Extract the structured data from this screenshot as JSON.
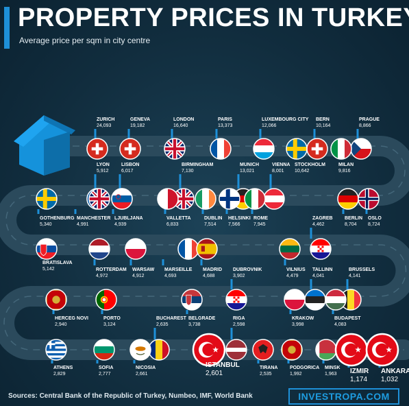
{
  "header": {
    "title": "PROPERTY PRICES IN TURKEY",
    "subtitle": "Average price per sqm in city centre"
  },
  "footer": {
    "sources": "Sources: Central Bank of the Republic of Turkey, Numbeo, IMF, World Bank",
    "brand": "INVESTROPA.COM"
  },
  "colors": {
    "background": "#112d3e",
    "road": "#2b4a5c",
    "road_dash": "#44677a",
    "accent": "#1e90d8",
    "turkey_red": "#e30a17",
    "label_tick": "#1e90d8"
  },
  "chart_data": {
    "type": "bar",
    "ylabel": "Average price per sqm in city centre",
    "categories": [
      "ZURICH",
      "GENEVA",
      "LONDON",
      "PARIS",
      "LUXEMBOURG CITY",
      "BERN",
      "PRAGUE",
      "LYON",
      "LISBON",
      "BIRMINGHAM",
      "MUNICH",
      "VIENNA",
      "STOCKHOLM",
      "MILAN",
      "GOTHENBURG",
      "MANCHESTER",
      "LJUBLJANA",
      "VALLETTA",
      "DUBLIN",
      "HELSINKI",
      "ROME",
      "ZAGREB",
      "BERLIN",
      "OSLO",
      "BRATISLAVA",
      "ROTTERDAM",
      "WARSAW",
      "MARSEILLE",
      "MADRID",
      "DUBROVNIK",
      "VILNIUS",
      "TALLINN",
      "BRUSSELS",
      "HERCEG NOVI",
      "PORTO",
      "BUCHAREST",
      "BELGRADE",
      "RIGA",
      "KRAKOW",
      "BUDAPEST",
      "ATHENS",
      "SOFIA",
      "NICOSIA",
      "ISTANBUL",
      "TIRANA",
      "PODGORICA",
      "MINSK",
      "IZMIR",
      "ANKARA"
    ],
    "values": [
      24093,
      19182,
      16640,
      13373,
      12066,
      10164,
      8866,
      5912,
      6017,
      7130,
      13021,
      8001,
      10642,
      9816,
      5340,
      4991,
      4939,
      6833,
      7514,
      7566,
      7945,
      4462,
      8704,
      8724,
      5142,
      4972,
      4912,
      4693,
      4688,
      3902,
      4479,
      4041,
      4141,
      2940,
      3124,
      2635,
      3738,
      2598,
      3998,
      4083,
      2829,
      2777,
      2661,
      2601,
      2535,
      1992,
      1963,
      1174,
      1032
    ],
    "points": [
      {
        "name": "ZURICH",
        "value": "24,093",
        "flag": "swiss"
      },
      {
        "name": "GENEVA",
        "value": "19,182",
        "flag": "swiss"
      },
      {
        "name": "LONDON",
        "value": "16,640",
        "flag": "uk"
      },
      {
        "name": "PARIS",
        "value": "13,373",
        "flag": "france"
      },
      {
        "name": "LUXEMBOURG CITY",
        "value": "12,066",
        "flag": "luxembourg"
      },
      {
        "name": "BERN",
        "value": "10,164",
        "flag": "swiss"
      },
      {
        "name": "PRAGUE",
        "value": "8,866",
        "flag": "czech"
      },
      {
        "name": "LYON",
        "value": "5,912",
        "flag": "france"
      },
      {
        "name": "LISBON",
        "value": "6,017",
        "flag": "portugal"
      },
      {
        "name": "BIRMINGHAM",
        "value": "7,130",
        "flag": "uk"
      },
      {
        "name": "MUNICH",
        "value": "13,021",
        "flag": "germany"
      },
      {
        "name": "VIENNA",
        "value": "8,001",
        "flag": "austria"
      },
      {
        "name": "STOCKHOLM",
        "value": "10,642",
        "flag": "sweden"
      },
      {
        "name": "MILAN",
        "value": "9,816",
        "flag": "italy"
      },
      {
        "name": "GOTHENBURG",
        "value": "5,340",
        "flag": "sweden"
      },
      {
        "name": "MANCHESTER",
        "value": "4,991",
        "flag": "uk"
      },
      {
        "name": "LJUBLJANA",
        "value": "4,939",
        "flag": "slovenia"
      },
      {
        "name": "VALLETTA",
        "value": "6,833",
        "flag": "malta"
      },
      {
        "name": "DUBLIN",
        "value": "7,514",
        "flag": "ireland"
      },
      {
        "name": "HELSINKI",
        "value": "7,566",
        "flag": "finland"
      },
      {
        "name": "ROME",
        "value": "7,945",
        "flag": "italy"
      },
      {
        "name": "ZAGREB",
        "value": "4,462",
        "flag": "croatia"
      },
      {
        "name": "BERLIN",
        "value": "8,704",
        "flag": "germany"
      },
      {
        "name": "OSLO",
        "value": "8,724",
        "flag": "norway"
      },
      {
        "name": "BRATISLAVA",
        "value": "5,142",
        "flag": "slovakia"
      },
      {
        "name": "ROTTERDAM",
        "value": "4,972",
        "flag": "netherlands"
      },
      {
        "name": "WARSAW",
        "value": "4,912",
        "flag": "poland"
      },
      {
        "name": "MARSEILLE",
        "value": "4,693",
        "flag": "france"
      },
      {
        "name": "MADRID",
        "value": "4,688",
        "flag": "spain"
      },
      {
        "name": "DUBROVNIK",
        "value": "3,902",
        "flag": "croatia"
      },
      {
        "name": "VILNIUS",
        "value": "4,479",
        "flag": "lithuania"
      },
      {
        "name": "TALLINN",
        "value": "4,041",
        "flag": "estonia"
      },
      {
        "name": "BRUSSELS",
        "value": "4,141",
        "flag": "belgium"
      },
      {
        "name": "HERCEG NOVI",
        "value": "2,940",
        "flag": "montenegro"
      },
      {
        "name": "PORTO",
        "value": "3,124",
        "flag": "portugal"
      },
      {
        "name": "BUCHAREST",
        "value": "2,635",
        "flag": "romania"
      },
      {
        "name": "BELGRADE",
        "value": "3,738",
        "flag": "serbia"
      },
      {
        "name": "RIGA",
        "value": "2,598",
        "flag": "latvia"
      },
      {
        "name": "KRAKOW",
        "value": "3,998",
        "flag": "poland"
      },
      {
        "name": "BUDAPEST",
        "value": "4,083",
        "flag": "hungary"
      },
      {
        "name": "ATHENS",
        "value": "2,829",
        "flag": "greece"
      },
      {
        "name": "SOFIA",
        "value": "2,777",
        "flag": "bulgaria"
      },
      {
        "name": "NICOSIA",
        "value": "2,661",
        "flag": "cyprus"
      },
      {
        "name": "ISTANBUL",
        "value": "2,601",
        "flag": "turkey"
      },
      {
        "name": "TIRANA",
        "value": "2,535",
        "flag": "albania"
      },
      {
        "name": "PODGORICA",
        "value": "1,992",
        "flag": "montenegro"
      },
      {
        "name": "MINSK",
        "value": "1,963",
        "flag": "belarus"
      },
      {
        "name": "IZMIR",
        "value": "1,174",
        "flag": "turkey"
      },
      {
        "name": "ANKARA",
        "value": "1,032",
        "flag": "turkey"
      }
    ]
  }
}
